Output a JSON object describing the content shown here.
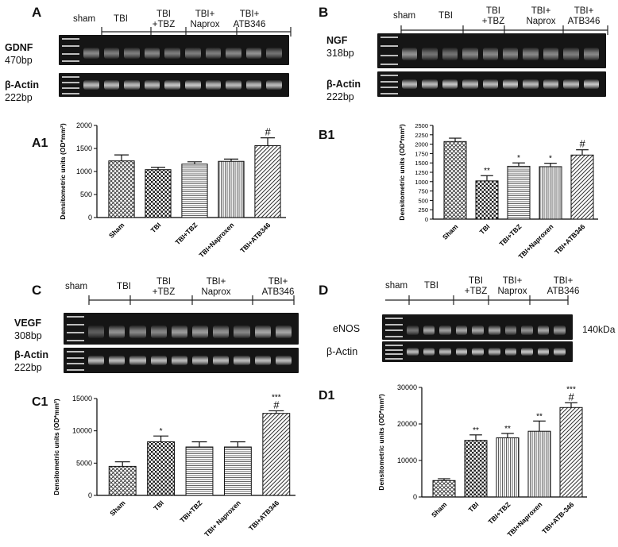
{
  "panels": [
    {
      "id": "a",
      "letter": "A",
      "lane_labels": [
        "sham",
        "TBI",
        "TBI\n+TBZ",
        "TBI+\nNaprox",
        "TBI+\nATB346"
      ],
      "blots": [
        {
          "name": "GDNF",
          "size": "470bp",
          "intensities": [
            0.55,
            0.5,
            0.5,
            0.55,
            0.5,
            0.5,
            0.5,
            0.55,
            0.6,
            0.45
          ]
        },
        {
          "name": "β-Actin",
          "size": "222bp",
          "intensities": [
            0.8,
            0.8,
            0.8,
            0.8,
            0.85,
            0.85,
            0.8,
            0.8,
            0.8,
            0.8
          ]
        }
      ],
      "sub_letter": "A1",
      "chart_data": {
        "type": "bar",
        "ylabel": "Densitometric units (OD*mm²)",
        "categories": [
          "Sham",
          "TBI",
          "TBI+TBZ",
          "TBI+Naproxen",
          "TBI+ATB346"
        ],
        "values": [
          1230,
          1040,
          1160,
          1220,
          1560
        ],
        "errors": [
          130,
          50,
          50,
          50,
          170
        ],
        "annotations": [
          "",
          "",
          "",
          "",
          "#"
        ],
        "ylim": [
          0,
          2000
        ],
        "yticks": [
          0,
          500,
          1000,
          1500,
          2000
        ],
        "patterns": [
          "cross",
          "check",
          "hstripe",
          "vstripe",
          "diag"
        ]
      }
    },
    {
      "id": "b",
      "letter": "B",
      "lane_labels": [
        "sham",
        "TBI",
        "TBI\n+TBZ",
        "TBI+\nNaprox",
        "TBI+\nATB346"
      ],
      "blots": [
        {
          "name": "NGF",
          "size": "318bp",
          "intensities": [
            0.6,
            0.45,
            0.45,
            0.55,
            0.55,
            0.55,
            0.55,
            0.55,
            0.5,
            0.55
          ]
        },
        {
          "name": "β-Actin",
          "size": "222bp",
          "intensities": [
            0.8,
            0.8,
            0.85,
            0.8,
            0.8,
            0.85,
            0.8,
            0.8,
            0.8,
            0.85
          ]
        }
      ],
      "sub_letter": "B1",
      "chart_data": {
        "type": "bar",
        "ylabel": "Densitometric units (OD*mm²)",
        "categories": [
          "Sham",
          "TBI",
          "TBI+TBZ",
          "TBI+Naproxen",
          "TBI+ATB346"
        ],
        "values": [
          2070,
          1020,
          1410,
          1400,
          1710
        ],
        "errors": [
          90,
          140,
          90,
          90,
          140
        ],
        "annotations": [
          "",
          "**",
          "*",
          "*",
          "#"
        ],
        "ylim": [
          0,
          2500
        ],
        "yticks": [
          0,
          250,
          500,
          750,
          1000,
          1250,
          1500,
          1750,
          2000,
          2250,
          2500
        ],
        "patterns": [
          "cross",
          "check",
          "hstripe",
          "vstripe",
          "diag"
        ]
      }
    },
    {
      "id": "c",
      "letter": "C",
      "lane_labels": [
        "sham",
        "TBI",
        "TBI\n+TBZ",
        "TBI+\nNaprox",
        "TBI+\nATB346"
      ],
      "blots": [
        {
          "name": "VEGF",
          "size": "308bp",
          "intensities": [
            0.35,
            0.6,
            0.55,
            0.55,
            0.65,
            0.65,
            0.6,
            0.55,
            0.7,
            0.7
          ]
        },
        {
          "name": "β-Actin",
          "size": "222bp",
          "intensities": [
            0.8,
            0.8,
            0.8,
            0.8,
            0.8,
            0.8,
            0.8,
            0.8,
            0.8,
            0.8
          ]
        }
      ],
      "sub_letter": "C1",
      "chart_data": {
        "type": "bar",
        "ylabel": "Densitometric units (OD*mm²)",
        "categories": [
          "Sham",
          "TBI",
          "TBI+TBZ",
          "TBI+ Naproxen",
          "TBI+ATB346"
        ],
        "values": [
          4500,
          8300,
          7500,
          7500,
          12700
        ],
        "errors": [
          700,
          900,
          800,
          800,
          400
        ],
        "annotations": [
          "",
          "*",
          "",
          "",
          "***\n#"
        ],
        "ylim": [
          0,
          15000
        ],
        "yticks": [
          0,
          5000,
          10000,
          15000
        ],
        "patterns": [
          "cross",
          "check",
          "hstripe",
          "hstripe",
          "diag"
        ]
      }
    },
    {
      "id": "d",
      "letter": "D",
      "lane_labels": [
        "sham",
        "TBI",
        "TBI\n+TBZ",
        "TBI+\nNaprox",
        "TBI+\nATB346"
      ],
      "blots": [
        {
          "name": "eNOS",
          "size": "",
          "intensities": [
            0.45,
            0.7,
            0.65,
            0.7,
            0.7,
            0.7,
            0.55,
            0.6,
            0.7,
            0.65
          ]
        },
        {
          "name": "β-Actin",
          "size": "",
          "intensities": [
            0.8,
            0.8,
            0.8,
            0.85,
            0.85,
            0.8,
            0.8,
            0.85,
            0.85,
            0.85
          ]
        }
      ],
      "kda": "140kDa",
      "sub_letter": "D1",
      "chart_data": {
        "type": "bar",
        "ylabel": "Densitometric units (OD*mm²)",
        "categories": [
          "Sham",
          "TBI",
          "TBI+TBZ",
          "TBI+Naproxen",
          "TBI+ATB-346"
        ],
        "values": [
          4500,
          15500,
          16200,
          18000,
          24500
        ],
        "errors": [
          500,
          1500,
          1200,
          2800,
          1300
        ],
        "annotations": [
          "",
          "**",
          "**",
          "**",
          "***\n#"
        ],
        "ylim": [
          0,
          30000
        ],
        "yticks": [
          0,
          10000,
          20000,
          30000
        ],
        "patterns": [
          "cross",
          "check",
          "vstripe",
          "vstripe",
          "diag"
        ]
      }
    }
  ]
}
